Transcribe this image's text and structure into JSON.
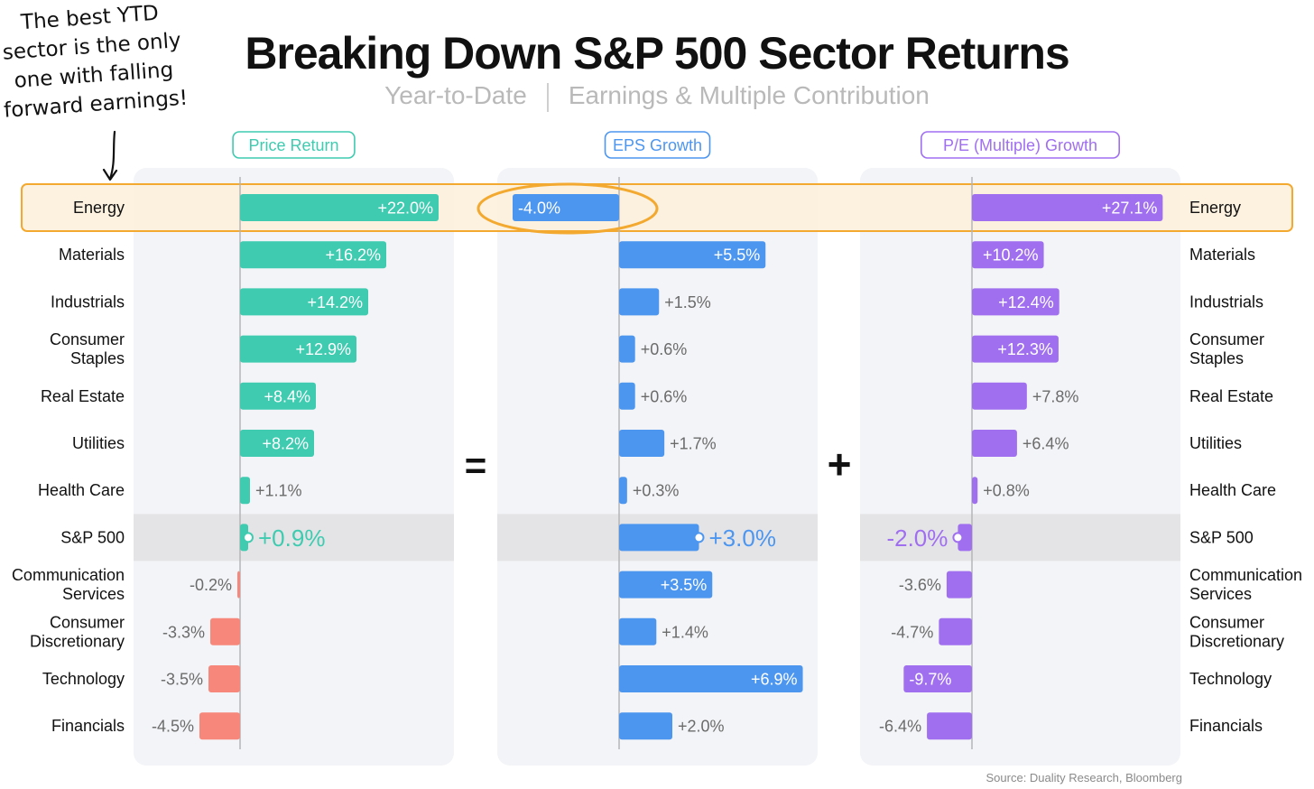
{
  "annotation": {
    "lines": [
      "The best YTD",
      "sector is the only",
      "one with falling",
      "forward earnings!"
    ]
  },
  "header": {
    "title": "Breaking Down S&P 500 Sector Returns",
    "subtitle_left": "Year-to-Date",
    "subtitle_right": "Earnings & Multiple Contribution"
  },
  "operators": {
    "equals": "=",
    "plus": "+"
  },
  "source": "Source: Duality Research, Bloomberg",
  "colors": {
    "price_return": "#3ecbb0",
    "eps_growth": "#4d96f0",
    "pe_growth": "#a06ff0",
    "negative_price": "#f7877a",
    "highlight_fill": "#fdf0db",
    "highlight_stroke": "#f3a92f",
    "panel_bg": "#f3f4f7",
    "sp500_band": "#e4e4e6"
  },
  "chart_data": {
    "type": "bar",
    "orientation": "horizontal",
    "categories": [
      [
        "Energy"
      ],
      [
        "Materials"
      ],
      [
        "Industrials"
      ],
      [
        "Consumer",
        "Staples"
      ],
      [
        "Real Estate"
      ],
      [
        "Utilities"
      ],
      [
        "Health Care"
      ],
      [
        "S&P 500"
      ],
      [
        "Communication",
        "Services"
      ],
      [
        "Consumer",
        "Discretionary"
      ],
      [
        "Technology"
      ],
      [
        "Financials"
      ]
    ],
    "highlighted_category": "Energy",
    "benchmark_category": "S&P 500",
    "panels": [
      {
        "name": "Price Return",
        "color_key": "price_return",
        "values": [
          22.0,
          16.2,
          14.2,
          12.9,
          8.4,
          8.2,
          1.1,
          0.9,
          -0.2,
          -3.3,
          -3.5,
          -4.5
        ],
        "labels": [
          "+22.0%",
          "+16.2%",
          "+14.2%",
          "+12.9%",
          "+8.4%",
          "+8.2%",
          "+1.1%",
          "+0.9%",
          "-0.2%",
          "-3.3%",
          "-3.5%",
          "-4.5%"
        ],
        "xlim": [
          -12,
          24
        ]
      },
      {
        "name": "EPS Growth",
        "color_key": "eps_growth",
        "values": [
          -4.0,
          5.5,
          1.5,
          0.6,
          0.6,
          1.7,
          0.3,
          3.0,
          3.5,
          1.4,
          6.9,
          2.0
        ],
        "labels": [
          "-4.0%",
          "+5.5%",
          "+1.5%",
          "+0.6%",
          "+0.6%",
          "+1.7%",
          "+0.3%",
          "+3.0%",
          "+3.5%",
          "+1.4%",
          "+6.9%",
          "+2.0%"
        ],
        "xlim": [
          -4.6,
          7.6
        ]
      },
      {
        "name": "P/E (Multiple) Growth",
        "color_key": "pe_growth",
        "values": [
          27.1,
          10.2,
          12.4,
          12.3,
          7.8,
          6.4,
          0.8,
          -2.0,
          -3.6,
          -4.7,
          -9.7,
          -6.4
        ],
        "labels": [
          "+27.1%",
          "+10.2%",
          "+12.4%",
          "+12.3%",
          "+7.8%",
          "+6.4%",
          "+0.8%",
          "-2.0%",
          "-3.6%",
          "-4.7%",
          "-9.7%",
          "-6.4%"
        ],
        "xlim": [
          -15.6,
          30.4
        ]
      }
    ]
  }
}
